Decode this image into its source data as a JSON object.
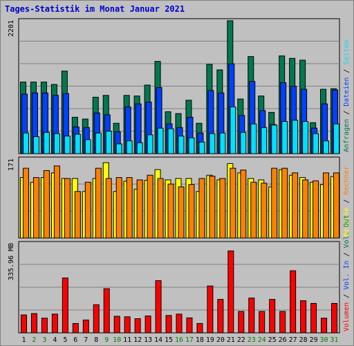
{
  "chart_data": {
    "type": "bar",
    "title": "Tages-Statistik im Monat Januar 2021",
    "categories": [
      "1",
      "2",
      "3",
      "4",
      "5",
      "6",
      "7",
      "8",
      "9",
      "10",
      "11",
      "12",
      "13",
      "14",
      "15",
      "16",
      "17",
      "18",
      "19",
      "20",
      "21",
      "22",
      "23",
      "24",
      "25",
      "26",
      "27",
      "28",
      "29",
      "30",
      "31"
    ],
    "weekend_days": [
      "2",
      "3",
      "9",
      "10",
      "16",
      "17",
      "23",
      "24",
      "30",
      "31"
    ],
    "colors": {
      "title": "#0000cc",
      "weekday_tick": "#000000",
      "weekend_tick": "#008000",
      "anfragen": "#007850",
      "dateien": "#0040ff",
      "seiten": "#00e0ff",
      "besuche": "#ffff00",
      "rechner": "#ff8000",
      "volumen": "#ff0000",
      "plot_bg": "#c0c0c0",
      "grid": "#808080"
    },
    "panels": [
      {
        "id": "top",
        "scale_label": "2201",
        "ylim": [
          0,
          2201
        ],
        "legend": [
          {
            "label": "Anfragen",
            "color": "#007850"
          },
          {
            "label": "Dateien",
            "color": "#0040ff"
          },
          {
            "label": "Seiten",
            "color": "#00e0ff"
          }
        ],
        "series": [
          {
            "name": "Anfragen",
            "values": [
              1180,
              1180,
              1180,
              1140,
              1360,
              600,
              570,
              930,
              960,
              500,
              960,
              950,
              1130,
              1520,
              690,
              660,
              880,
              500,
              1470,
              1380,
              2190,
              900,
              1600,
              950,
              680,
              1610,
              1570,
              1540,
              510,
              1060,
              1070
            ]
          },
          {
            "name": "Dateien",
            "values": [
              980,
              1000,
              1000,
              960,
              990,
              440,
              430,
              670,
              640,
              360,
              770,
              820,
              850,
              1090,
              490,
              430,
              600,
              340,
              1040,
              1000,
              1480,
              630,
              1190,
              710,
              480,
              1170,
              1110,
              1060,
              420,
              820,
              1050
            ]
          },
          {
            "name": "Seiten",
            "values": [
              340,
              280,
              350,
              330,
              290,
              320,
              230,
              340,
              370,
              160,
              210,
              180,
              310,
              420,
              410,
              290,
              260,
              190,
              330,
              340,
              770,
              350,
              490,
              430,
              470,
              530,
              550,
              530,
              330,
              210,
              490
            ]
          }
        ]
      },
      {
        "id": "middle",
        "scale_label": "171",
        "ylim": [
          0,
          171
        ],
        "legend": [
          {
            "label": "Besuche",
            "color": "#ffff00"
          },
          {
            "label": "Rechner",
            "color": "#ff8000"
          }
        ],
        "series": [
          {
            "name": "Besuche",
            "values": [
              130,
              120,
              130,
              140,
              128,
              128,
              100,
              128,
              162,
              100,
              122,
              105,
              124,
              147,
              125,
              128,
              128,
              100,
              135,
              125,
              160,
              140,
              128,
              125,
              110,
              147,
              135,
              130,
              120,
              115,
              132
            ]
          },
          {
            "name": "Rechner",
            "values": [
              150,
              130,
              145,
              155,
              128,
              100,
              120,
              150,
              128,
              130,
              130,
              125,
              135,
              128,
              116,
              110,
              115,
              128,
              133,
              128,
              150,
              146,
              120,
              118,
              150,
              150,
              140,
              125,
              123,
              140,
              140
            ]
          }
        ]
      },
      {
        "id": "bottom",
        "scale_label": "335.96 MB",
        "ylim": [
          0,
          335.96
        ],
        "legend": [
          {
            "label": "Volumen",
            "color": "#ff0000"
          },
          {
            "label": "Vol. In",
            "color": "#0040ff"
          },
          {
            "label": "Vol. Out",
            "color": "#007850"
          }
        ],
        "series": [
          {
            "name": "Volumen",
            "values": [
              67,
              72,
              55,
              70,
              205,
              35,
              48,
              105,
              165,
              62,
              60,
              53,
              63,
              195,
              65,
              70,
              56,
              35,
              175,
              125,
              306,
              80,
              130,
              80,
              125,
              80,
              232,
              120,
              110,
              55,
              110
            ]
          }
        ]
      }
    ]
  }
}
